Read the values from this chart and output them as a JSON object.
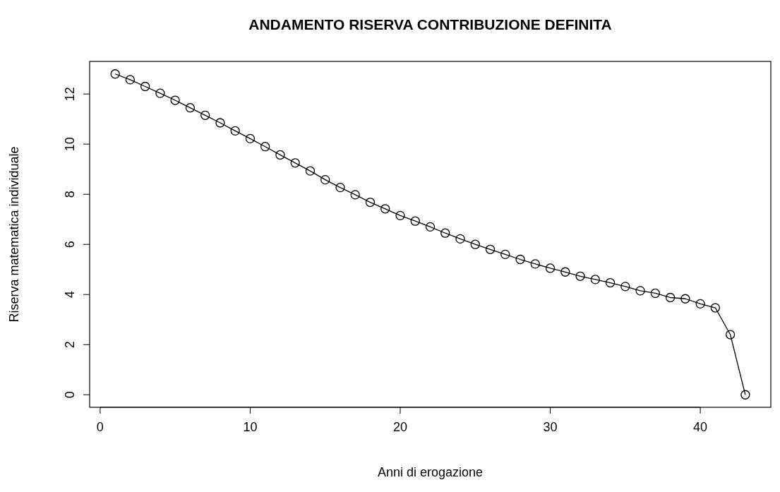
{
  "chart_data": {
    "type": "line",
    "title": "ANDAMENTO RISERVA CONTRIBUZIONE DEFINITA",
    "xlabel": "Anni di erogazione",
    "ylabel": "Riserva matematica individuale",
    "x": [
      1,
      2,
      3,
      4,
      5,
      6,
      7,
      8,
      9,
      10,
      11,
      12,
      13,
      14,
      15,
      16,
      17,
      18,
      19,
      20,
      21,
      22,
      23,
      24,
      25,
      26,
      27,
      28,
      29,
      30,
      31,
      32,
      33,
      34,
      35,
      36,
      37,
      38,
      39,
      40,
      41,
      42,
      43
    ],
    "series": [
      {
        "color": "#000000",
        "values": [
          12.8,
          12.57,
          12.3,
          12.03,
          11.75,
          11.45,
          11.15,
          10.85,
          10.53,
          10.22,
          9.9,
          9.57,
          9.25,
          8.93,
          8.58,
          8.27,
          7.98,
          7.68,
          7.42,
          7.15,
          6.93,
          6.7,
          6.45,
          6.22,
          6.0,
          5.8,
          5.6,
          5.4,
          5.22,
          5.05,
          4.9,
          4.73,
          4.6,
          4.47,
          4.32,
          4.15,
          4.05,
          3.88,
          3.83,
          3.63,
          3.47,
          2.4,
          0
        ]
      }
    ],
    "xlim": [
      -0.7,
      44.7
    ],
    "ylim": [
      -0.5,
      13.3
    ],
    "xticks": [
      0,
      10,
      20,
      30,
      40
    ],
    "yticks": [
      0,
      2,
      4,
      6,
      8,
      10,
      12
    ],
    "marker": "circle",
    "line_style": "solid"
  }
}
